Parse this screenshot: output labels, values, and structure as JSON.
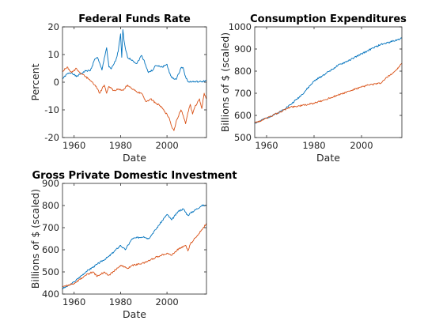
{
  "chart_data": [
    {
      "type": "line",
      "title": "Federal Funds Rate",
      "xlabel": "Date",
      "ylabel": "Percent",
      "xlim": [
        1955,
        2017
      ],
      "ylim": [
        -20,
        20
      ],
      "xticks": [
        1960,
        1980,
        2000
      ],
      "yticks": [
        -20,
        -10,
        0,
        10,
        20
      ],
      "grid": false,
      "series": [
        {
          "color": "#0072BD",
          "x": [
            1955,
            1957,
            1959,
            1961,
            1963,
            1965,
            1967,
            1969,
            1970,
            1972,
            1973,
            1974,
            1975,
            1976,
            1978,
            1979,
            1980,
            1980.5,
            1981,
            1981.5,
            1982,
            1983,
            1985,
            1987,
            1989,
            1990,
            1992,
            1994,
            1995,
            1998,
            2000,
            2001,
            2002,
            2004,
            2005,
            2006,
            2007,
            2008,
            2009,
            2015,
            2016,
            2017
          ],
          "y": [
            1.2,
            3.0,
            3.5,
            2.0,
            3.1,
            4.1,
            4.2,
            8.5,
            9.0,
            4.4,
            8.7,
            12.5,
            5.5,
            4.8,
            8.0,
            11.2,
            17.5,
            9.0,
            19.0,
            15.0,
            12.5,
            9.0,
            8.0,
            6.7,
            9.7,
            8.1,
            3.5,
            4.5,
            6.0,
            5.5,
            6.5,
            3.5,
            1.7,
            1.0,
            3.0,
            5.2,
            5.2,
            2.0,
            0.2,
            0.15,
            0.4,
            0.6
          ]
        },
        {
          "color": "#D95319",
          "x": [
            1955,
            1957,
            1959,
            1961,
            1963,
            1965,
            1967,
            1969,
            1971,
            1973,
            1974,
            1975,
            1977,
            1979,
            1981,
            1983,
            1985,
            1987,
            1989,
            1991,
            1993,
            1995,
            1997,
            1999,
            2001,
            2002,
            2003,
            2004,
            2006,
            2007,
            2008,
            2009,
            2010,
            2011,
            2012,
            2014,
            2015,
            2016,
            2017
          ],
          "y": [
            4.0,
            5.5,
            3.5,
            5.0,
            3.0,
            2.0,
            0.5,
            -1.0,
            -4.0,
            -1.0,
            -4.0,
            -1.5,
            -3.0,
            -2.5,
            -3.0,
            -1.0,
            -2.5,
            -3.5,
            -4.0,
            -7.0,
            -6.0,
            -7.5,
            -8.5,
            -10.5,
            -13.0,
            -16.0,
            -17.5,
            -14.0,
            -10.0,
            -12.0,
            -15.0,
            -11.0,
            -8.0,
            -11.5,
            -9.0,
            -6.0,
            -9.5,
            -4.0,
            -6.0
          ]
        }
      ]
    },
    {
      "type": "line",
      "title": "Consumption Expenditures",
      "xlabel": "Date",
      "ylabel": "Billions of $ (scaled)",
      "xlim": [
        1955,
        2017
      ],
      "ylim": [
        500,
        1000
      ],
      "xticks": [
        1960,
        1980,
        2000
      ],
      "yticks": [
        500,
        600,
        700,
        800,
        900,
        1000
      ],
      "grid": false,
      "series": [
        {
          "color": "#0072BD",
          "x": [
            1955,
            1960,
            1965,
            1970,
            1975,
            1980,
            1985,
            1990,
            1995,
            2000,
            2005,
            2008,
            2010,
            2015,
            2017
          ],
          "y": [
            565,
            588,
            612,
            648,
            695,
            755,
            790,
            825,
            850,
            878,
            905,
            920,
            925,
            942,
            948
          ]
        },
        {
          "color": "#D95319",
          "x": [
            1955,
            1960,
            1965,
            1970,
            1975,
            1980,
            1985,
            1990,
            1995,
            2000,
            2003,
            2008,
            2010,
            2015,
            2017
          ],
          "y": [
            565,
            588,
            612,
            638,
            645,
            655,
            672,
            692,
            710,
            728,
            738,
            745,
            765,
            808,
            835
          ]
        }
      ]
    },
    {
      "type": "line",
      "title": "Gross Private Domestic Investment",
      "xlabel": "Date",
      "ylabel": "Billions of $ (scaled)",
      "xlim": [
        1955,
        2017
      ],
      "ylim": [
        400,
        900
      ],
      "xticks": [
        1960,
        1980,
        2000
      ],
      "yticks": [
        400,
        500,
        600,
        700,
        800,
        900
      ],
      "grid": false,
      "series": [
        {
          "color": "#0072BD",
          "x": [
            1955,
            1958,
            1960,
            1965,
            1970,
            1975,
            1980,
            1982,
            1985,
            1990,
            1992,
            1995,
            2000,
            2002,
            2005,
            2007,
            2009,
            2010,
            2015,
            2017
          ],
          "y": [
            425,
            440,
            455,
            500,
            535,
            570,
            620,
            600,
            650,
            660,
            650,
            690,
            760,
            735,
            775,
            785,
            755,
            765,
            800,
            800
          ]
        },
        {
          "color": "#D95319",
          "x": [
            1955,
            1958,
            1960,
            1965,
            1968,
            1970,
            1973,
            1975,
            1980,
            1983,
            1985,
            1990,
            1995,
            2000,
            2002,
            2005,
            2008,
            2009,
            2010,
            2015,
            2017
          ],
          "y": [
            432,
            442,
            448,
            485,
            500,
            480,
            500,
            485,
            530,
            515,
            530,
            540,
            565,
            585,
            575,
            605,
            620,
            595,
            625,
            690,
            720
          ]
        }
      ]
    }
  ]
}
